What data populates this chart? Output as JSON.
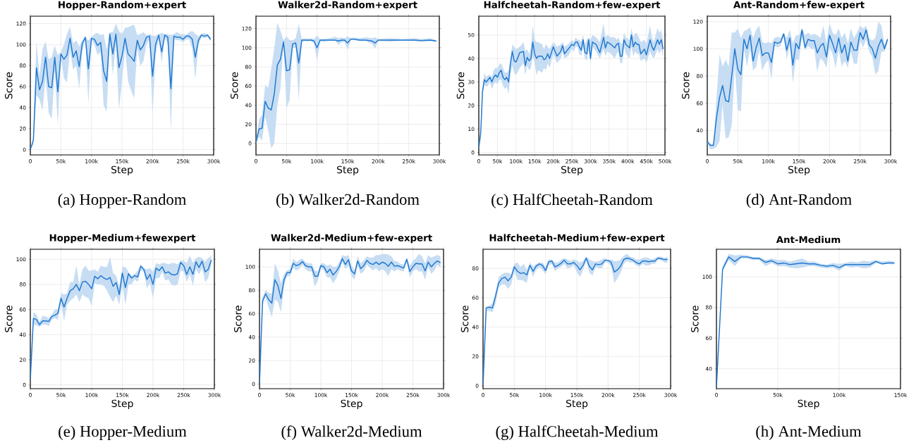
{
  "chart_data": [
    {
      "type": "line",
      "title": "Hopper-Random+expert",
      "xlabel": "Step",
      "ylabel": "Score",
      "annotations": [
        "(a) Hopper-Random"
      ],
      "grid": true,
      "xlim": [
        0,
        300000
      ],
      "ylim": [
        -5,
        127
      ],
      "xticks": [
        0,
        {
          "value": 50000,
          "label": "50k"
        },
        {
          "value": 100000,
          "label": "100k"
        },
        {
          "value": 150000,
          "label": "150k"
        },
        {
          "value": 200000,
          "label": "200k"
        },
        {
          "value": 250000,
          "label": "250k"
        },
        {
          "value": 300000,
          "label": "300k"
        }
      ],
      "yticks": [
        0,
        20,
        40,
        60,
        80,
        100,
        120
      ],
      "x": [
        0,
        5000,
        10000,
        15000,
        20000,
        25000,
        30000,
        35000,
        40000,
        45000,
        50000,
        55000,
        60000,
        65000,
        70000,
        75000,
        80000,
        85000,
        90000,
        95000,
        100000,
        105000,
        110000,
        115000,
        120000,
        125000,
        130000,
        135000,
        140000,
        145000,
        150000,
        155000,
        160000,
        165000,
        170000,
        175000,
        180000,
        185000,
        190000,
        195000,
        200000,
        205000,
        210000,
        215000,
        220000,
        225000,
        230000,
        235000,
        240000,
        245000,
        250000,
        255000,
        260000,
        265000,
        270000,
        275000,
        280000,
        285000,
        290000,
        295000
      ],
      "series": [
        {
          "color": "#1f78d1",
          "values": [
            0,
            9,
            78,
            57,
            65,
            88,
            60,
            59,
            88,
            55,
            91,
            86,
            90,
            106,
            88,
            94,
            79,
            101,
            107,
            77,
            106,
            105,
            99,
            102,
            75,
            65,
            110,
            91,
            110,
            78,
            89,
            106,
            91,
            88,
            84,
            104,
            95,
            99,
            107,
            108,
            70,
            100,
            109,
            93,
            109,
            107,
            58,
            108,
            107,
            107,
            105,
            108,
            108,
            105,
            88,
            104,
            109,
            108,
            109,
            105
          ],
          "upper": [
            0,
            12,
            103,
            70,
            96,
            103,
            86,
            88,
            99,
            90,
            93,
            100,
            110,
            117,
            101,
            104,
            98,
            104,
            107,
            104,
            107,
            110,
            111,
            109,
            110,
            95,
            112,
            112,
            120,
            113,
            110,
            116,
            116.5,
            118,
            119,
            109,
            110,
            112,
            109,
            110,
            108.5,
            108,
            110,
            111,
            110,
            110,
            109,
            110,
            112,
            110,
            110,
            109,
            112,
            113,
            110,
            108,
            110,
            111,
            110,
            107
          ],
          "lower": [
            0,
            5,
            52,
            48,
            37,
            70,
            35,
            29,
            75,
            23,
            88,
            68,
            64,
            95,
            76,
            80,
            58,
            93,
            105,
            43,
            104,
            100,
            90,
            93,
            42,
            36,
            104,
            71,
            100,
            38,
            65,
            96,
            65,
            56,
            49,
            97,
            80,
            84,
            100,
            105,
            33,
            90,
            105,
            82,
            106,
            101,
            17,
            105,
            104,
            104,
            102,
            105,
            105,
            96,
            67,
            99,
            107,
            106,
            107,
            103
          ]
        }
      ]
    },
    {
      "type": "line",
      "title": "Walker2d-Random+expert",
      "xlabel": "Step",
      "ylabel": "Score",
      "annotations": [
        "(b) Walker2d-Random"
      ],
      "grid": true,
      "xlim": [
        0,
        300000
      ],
      "ylim": [
        -12,
        133
      ],
      "xticks": [
        0,
        {
          "value": 50000,
          "label": "50k"
        },
        {
          "value": 100000,
          "label": "100k"
        },
        {
          "value": 150000,
          "label": "150k"
        },
        {
          "value": 200000,
          "label": "200k"
        },
        {
          "value": 250000,
          "label": "250k"
        },
        {
          "value": 300000,
          "label": "300k"
        }
      ],
      "yticks": [
        0,
        20,
        40,
        60,
        80,
        100,
        120
      ],
      "x": [
        0,
        5000,
        10000,
        15000,
        20000,
        25000,
        30000,
        35000,
        40000,
        45000,
        50000,
        55000,
        60000,
        65000,
        70000,
        75000,
        80000,
        85000,
        90000,
        95000,
        100000,
        105000,
        110000,
        120000,
        130000,
        135000,
        140000,
        145000,
        150000,
        155000,
        160000,
        170000,
        180000,
        190000,
        195000,
        200000,
        220000,
        240000,
        260000,
        270000,
        285000,
        295000
      ],
      "series": [
        {
          "color": "#1f78d1",
          "values": [
            1,
            15,
            16,
            44,
            37,
            35,
            52,
            82,
            88,
            106,
            76,
            77,
            104,
            105,
            84,
            108,
            108,
            108,
            108,
            107,
            100,
            108,
            108,
            108,
            108,
            107,
            108,
            108,
            105,
            109,
            109,
            108,
            108,
            107,
            105,
            108,
            108,
            108,
            108,
            107.5,
            108,
            107
          ],
          "upper": [
            2,
            25,
            30,
            61,
            58,
            78,
            100,
            126,
            118,
            108,
            112,
            108,
            108,
            110,
            125,
            109,
            110,
            109,
            110,
            109,
            113,
            109,
            109,
            110,
            111.5,
            110,
            111,
            110,
            112,
            110,
            111,
            110,
            111,
            110,
            111,
            109,
            110,
            109,
            110,
            109,
            110,
            108
          ],
          "lower": [
            0,
            7,
            3,
            28,
            14,
            -5,
            0,
            40,
            57,
            104,
            37,
            45,
            100,
            100,
            45,
            106,
            107,
            106.5,
            107,
            105,
            86,
            107,
            106,
            107.5,
            107,
            103,
            106,
            106,
            98,
            108,
            108,
            107,
            107,
            104,
            99,
            107,
            106.5,
            107.5,
            107,
            106,
            107,
            106
          ]
        }
      ]
    },
    {
      "type": "line",
      "title": "Halfcheetah-Random+few-expert",
      "xlabel": "Step",
      "ylabel": "Score",
      "annotations": [
        "(c) HalfCheetah-Random"
      ],
      "grid": true,
      "xlim": [
        0,
        500000
      ],
      "ylim": [
        -1,
        58
      ],
      "xticks": [
        0,
        {
          "value": 50000,
          "label": "50k"
        },
        {
          "value": 100000,
          "label": "100k"
        },
        {
          "value": 150000,
          "label": "150k"
        },
        {
          "value": 200000,
          "label": "200k"
        },
        {
          "value": 250000,
          "label": "250k"
        },
        {
          "value": 300000,
          "label": "300k"
        },
        {
          "value": 350000,
          "label": "350k"
        },
        {
          "value": 400000,
          "label": "400k"
        },
        {
          "value": 450000,
          "label": "450k"
        },
        {
          "value": 500000,
          "label": "500k"
        }
      ],
      "yticks": [
        0,
        10,
        20,
        30,
        40,
        50
      ],
      "x": [
        0,
        5000,
        10000,
        15000,
        20000,
        25000,
        30000,
        35000,
        40000,
        45000,
        50000,
        55000,
        60000,
        65000,
        70000,
        75000,
        80000,
        85000,
        90000,
        95000,
        100000,
        110000,
        120000,
        125000,
        130000,
        135000,
        140000,
        145000,
        150000,
        155000,
        160000,
        170000,
        175000,
        180000,
        185000,
        190000,
        200000,
        210000,
        220000,
        225000,
        230000,
        240000,
        250000,
        255000,
        260000,
        265000,
        270000,
        275000,
        280000,
        285000,
        290000,
        295000,
        300000,
        305000,
        315000,
        325000,
        335000,
        340000,
        345000,
        355000,
        365000,
        370000,
        375000,
        380000,
        385000,
        390000,
        395000,
        405000,
        410000,
        415000,
        420000,
        425000,
        430000,
        435000,
        445000,
        450000,
        460000,
        465000,
        470000,
        480000,
        485000,
        490000,
        495000
      ],
      "series": [
        {
          "color": "#1f78d1",
          "values": [
            2,
            8,
            26,
            31,
            30,
            31,
            32,
            30,
            32,
            33,
            32,
            34,
            35,
            32,
            31,
            32,
            30,
            38,
            43,
            39,
            38.5,
            42.5,
            43,
            37,
            40.5,
            39,
            40,
            47,
            42,
            40,
            41,
            41,
            39.5,
            40,
            42,
            40,
            45,
            41,
            43,
            45.5,
            42,
            44,
            46,
            45.5,
            47,
            47,
            45,
            43.5,
            48,
            42.5,
            42,
            48,
            40,
            47,
            46,
            42.5,
            49,
            44.5,
            47,
            46,
            44.5,
            46,
            46.5,
            41,
            41,
            48,
            46,
            44.5,
            50,
            45,
            47,
            46,
            46,
            42,
            44,
            41.5,
            48,
            45,
            43.5,
            48,
            46,
            48,
            44
          ],
          "upper": [
            3,
            9,
            28,
            34,
            32,
            33,
            33,
            32,
            35,
            36,
            36,
            37.5,
            38,
            36,
            34,
            34,
            35,
            40,
            46,
            45,
            44,
            45,
            47,
            43,
            44,
            42,
            45,
            54,
            48,
            47,
            47,
            46,
            44,
            46,
            45,
            44,
            47,
            45,
            46,
            47,
            45,
            46,
            48,
            47,
            49,
            48,
            48,
            47,
            50,
            46,
            48,
            49,
            48,
            50,
            49,
            47,
            55,
            49,
            50,
            49,
            49,
            48,
            49,
            47,
            46,
            51,
            49,
            48,
            53,
            49,
            51,
            50.5,
            49,
            47,
            48,
            46,
            54,
            49,
            47,
            53,
            51,
            52,
            48
          ],
          "lower": [
            1.5,
            7,
            24,
            29,
            28,
            28.5,
            30,
            27,
            29,
            30,
            29,
            31,
            31,
            28.5,
            27,
            28,
            25,
            33,
            37,
            34,
            33,
            36,
            38,
            33,
            37,
            35,
            36,
            41,
            38,
            33,
            35,
            34,
            36,
            35,
            38,
            36,
            42,
            38,
            40,
            43,
            40,
            41,
            44,
            43,
            45,
            45,
            42,
            41,
            45,
            40,
            39,
            44,
            38,
            45,
            43,
            40,
            44,
            41,
            43,
            42,
            40,
            42,
            43,
            38,
            38,
            45,
            42,
            40,
            45,
            41,
            43,
            42,
            42,
            39,
            40,
            38,
            43,
            41,
            40,
            44,
            42,
            44,
            40
          ]
        }
      ]
    },
    {
      "type": "line",
      "title": "Ant-Random+few-expert",
      "xlabel": "Step",
      "ylabel": "Score",
      "annotations": [
        "(d) Ant-Random"
      ],
      "grid": true,
      "xlim": [
        0,
        300000
      ],
      "ylim": [
        22,
        124
      ],
      "xticks": [
        0,
        {
          "value": 50000,
          "label": "50k"
        },
        {
          "value": 100000,
          "label": "100k"
        },
        {
          "value": 150000,
          "label": "150k"
        },
        {
          "value": 200000,
          "label": "200k"
        },
        {
          "value": 250000,
          "label": "250k"
        },
        {
          "value": 300000,
          "label": "300k"
        }
      ],
      "yticks": [
        40,
        60,
        80,
        100,
        120
      ],
      "x": [
        0,
        5000,
        10000,
        15000,
        20000,
        25000,
        30000,
        35000,
        40000,
        45000,
        50000,
        55000,
        60000,
        65000,
        70000,
        75000,
        80000,
        85000,
        90000,
        95000,
        100000,
        105000,
        110000,
        115000,
        120000,
        125000,
        130000,
        135000,
        140000,
        145000,
        150000,
        155000,
        160000,
        165000,
        170000,
        175000,
        180000,
        185000,
        190000,
        195000,
        200000,
        205000,
        210000,
        215000,
        220000,
        225000,
        230000,
        235000,
        240000,
        245000,
        250000,
        255000,
        260000,
        265000,
        270000,
        275000,
        280000,
        285000,
        290000,
        295000
      ],
      "series": [
        {
          "color": "#1f78d1",
          "values": [
            32,
            29,
            29,
            49,
            64,
            73,
            62,
            61,
            80,
            100,
            85,
            81,
            107,
            100,
            110,
            91,
            101,
            108,
            95,
            97,
            97,
            90,
            105,
            104,
            105,
            111,
            99,
            108,
            88,
            104,
            100,
            114,
            101,
            107,
            106,
            106,
            97,
            102,
            104,
            94,
            110,
            104,
            97,
            108,
            97,
            103,
            91,
            105,
            99,
            99,
            112,
            107,
            114,
            103,
            100,
            93,
            102,
            107,
            100,
            107
          ],
          "upper": [
            32,
            30,
            30,
            63,
            96,
            87,
            92,
            87,
            112,
            112,
            115,
            108,
            113,
            114,
            116,
            108,
            114,
            117,
            105,
            104,
            105,
            104,
            108,
            109,
            108,
            112,
            108,
            114,
            104,
            110,
            110,
            115,
            110,
            112,
            110,
            111,
            110,
            108,
            117,
            104,
            119,
            112,
            110,
            115,
            108,
            112,
            104,
            115,
            108,
            112,
            117,
            115,
            117,
            108,
            106,
            108,
            120,
            117,
            103,
            109
          ],
          "lower": [
            31,
            26,
            26.5,
            28,
            32,
            59,
            34,
            35,
            44,
            88,
            55,
            54,
            100,
            87,
            100,
            84,
            87,
            99,
            84,
            89,
            92,
            77,
            102,
            101,
            102,
            109,
            92,
            103,
            75,
            92,
            92,
            108,
            99,
            102,
            100,
            100,
            83,
            93,
            91,
            86,
            101,
            96,
            86,
            99,
            87,
            91,
            86,
            98,
            89,
            89,
            106,
            101,
            107,
            98,
            94,
            81,
            84,
            98,
            98,
            104
          ]
        }
      ]
    },
    {
      "type": "line",
      "title": "Hopper-Medium+fewexpert",
      "xlabel": "Step",
      "ylabel": "Score",
      "annotations": [
        "(e) Hopper-Medium"
      ],
      "grid": true,
      "xlim": [
        0,
        300000
      ],
      "ylim": [
        -3,
        108
      ],
      "xticks": [
        0,
        {
          "value": 50000,
          "label": "50k"
        },
        {
          "value": 100000,
          "label": "100k"
        },
        {
          "value": 150000,
          "label": "150k"
        },
        {
          "value": 200000,
          "label": "200k"
        },
        {
          "value": 250000,
          "label": "250k"
        },
        {
          "value": 300000,
          "label": "300k"
        }
      ],
      "yticks": [
        0,
        20,
        40,
        60,
        80,
        100
      ],
      "x": [
        0,
        5000,
        10000,
        15000,
        20000,
        25000,
        30000,
        35000,
        40000,
        45000,
        50000,
        55000,
        60000,
        65000,
        70000,
        75000,
        80000,
        85000,
        90000,
        95000,
        100000,
        105000,
        110000,
        115000,
        120000,
        125000,
        130000,
        135000,
        140000,
        145000,
        150000,
        155000,
        160000,
        165000,
        170000,
        175000,
        180000,
        185000,
        190000,
        195000,
        200000,
        205000,
        210000,
        215000,
        220000,
        225000,
        230000,
        235000,
        240000,
        245000,
        250000,
        255000,
        260000,
        265000,
        270000,
        275000,
        280000,
        285000,
        290000,
        295000
      ],
      "series": [
        {
          "color": "#1f78d1",
          "values": [
            4,
            53,
            52,
            48,
            51,
            51,
            50.5,
            54.5,
            55.5,
            57,
            69,
            62,
            69,
            75,
            76.5,
            80,
            75,
            82,
            82.5,
            80,
            76.5,
            86.5,
            84.5,
            87,
            85,
            84,
            85.5,
            78.5,
            81.5,
            72,
            89,
            77.5,
            88.5,
            85,
            87,
            86,
            94.5,
            92,
            84,
            88,
            80,
            93,
            91,
            94,
            89,
            90,
            88,
            87.5,
            88.5,
            97.5,
            95,
            88,
            94,
            88,
            98,
            93.5,
            98.5,
            90,
            92,
            99.5
          ],
          "upper": [
            5,
            58,
            56,
            50,
            55,
            54.5,
            53,
            56,
            60,
            60,
            73,
            72,
            73,
            82,
            82,
            95,
            80,
            92,
            95,
            91,
            91,
            92,
            90,
            95,
            94,
            94,
            102,
            89,
            87,
            78,
            94,
            94,
            90,
            87,
            88.5,
            91,
            96,
            93,
            92,
            93,
            90,
            97,
            96,
            97,
            97,
            96,
            97,
            97,
            96,
            99,
            99,
            97,
            103,
            97,
            101,
            102,
            101,
            98,
            101,
            103
          ],
          "lower": [
            3,
            48,
            47.5,
            46,
            48,
            48,
            47,
            52,
            53,
            52,
            65,
            51,
            64,
            67,
            69,
            72,
            66,
            72,
            70,
            69,
            63,
            81,
            80,
            80,
            79,
            75,
            70,
            66,
            71,
            64,
            79,
            64,
            80,
            80,
            84,
            82,
            91,
            90,
            77,
            81,
            69,
            85,
            85,
            90,
            83,
            84,
            80,
            79,
            80,
            91,
            90,
            82,
            88,
            79,
            92,
            88,
            93,
            82,
            85,
            96
          ]
        }
      ]
    },
    {
      "type": "line",
      "title": "Walker2d-Medium+few-expert",
      "xlabel": "Step",
      "ylabel": "Score",
      "annotations": [
        "(f) Walker2d-Medium"
      ],
      "grid": true,
      "xlim": [
        0,
        300000
      ],
      "ylim": [
        -4,
        115
      ],
      "xticks": [
        0,
        {
          "value": 50000,
          "label": "50k"
        },
        {
          "value": 100000,
          "label": "100k"
        },
        {
          "value": 150000,
          "label": "150k"
        },
        {
          "value": 200000,
          "label": "200k"
        },
        {
          "value": 250000,
          "label": "250k"
        },
        {
          "value": 300000,
          "label": "300k"
        }
      ],
      "yticks": [
        0,
        20,
        40,
        60,
        80,
        100
      ],
      "x": [
        0,
        5000,
        10000,
        15000,
        20000,
        25000,
        30000,
        35000,
        40000,
        45000,
        50000,
        55000,
        60000,
        65000,
        70000,
        75000,
        80000,
        85000,
        90000,
        95000,
        100000,
        105000,
        110000,
        115000,
        120000,
        125000,
        130000,
        135000,
        140000,
        145000,
        150000,
        155000,
        160000,
        165000,
        170000,
        175000,
        180000,
        185000,
        190000,
        195000,
        200000,
        205000,
        210000,
        215000,
        220000,
        225000,
        230000,
        235000,
        240000,
        245000,
        250000,
        255000,
        260000,
        265000,
        270000,
        275000,
        280000,
        285000,
        290000,
        295000
      ],
      "series": [
        {
          "color": "#1f78d1",
          "values": [
            0,
            71,
            77,
            72,
            69,
            89,
            84,
            73,
            89,
            95,
            95,
            103,
            101,
            102,
            104.5,
            101,
            100,
            100,
            92,
            92,
            101,
            100,
            95,
            98,
            93,
            96,
            100,
            107,
            102,
            106,
            96.5,
            94,
            105,
            98.5,
            101,
            105.5,
            103,
            102,
            104,
            102,
            104,
            103,
            100.5,
            104,
            100.5,
            101,
            100,
            99,
            106.5,
            96,
            100,
            103,
            102.5,
            102.5,
            96.5,
            104,
            100,
            103,
            105,
            103.5
          ],
          "upper": [
            1,
            74,
            80,
            78,
            77,
            103,
            97,
            86,
            94,
            97,
            98,
            107,
            104,
            106,
            107,
            104,
            103,
            103,
            97,
            96,
            103,
            103,
            101,
            102,
            100,
            100,
            104,
            110,
            109,
            110,
            101,
            97,
            109,
            103,
            105.5,
            109,
            108,
            108,
            110,
            110,
            111,
            111,
            110.5,
            109,
            105,
            104.5,
            102.5,
            102,
            108,
            101,
            105,
            107.5,
            111,
            109,
            103,
            110,
            108,
            109,
            110,
            109
          ],
          "lower": [
            -1,
            67,
            74,
            65,
            57,
            72,
            70,
            61,
            84,
            92,
            92,
            99,
            97,
            98,
            102,
            98,
            96,
            96,
            83,
            88,
            99,
            97,
            91,
            91,
            86,
            90,
            96,
            104,
            98,
            101,
            92,
            89,
            101,
            94,
            96,
            102,
            99,
            97,
            99,
            96,
            98,
            96,
            92,
            98,
            96,
            98,
            96.5,
            96,
            104,
            91,
            96,
            98,
            96,
            96,
            89,
            100,
            94,
            97,
            102,
            99
          ]
        }
      ]
    },
    {
      "type": "line",
      "title": "Halfcheetah-Medium+few-expert",
      "xlabel": "Step",
      "ylabel": "Score",
      "annotations": [
        "(g) HalfCheetah-Medium"
      ],
      "grid": true,
      "xlim": [
        0,
        300000
      ],
      "ylim": [
        -2,
        93
      ],
      "xticks": [
        0,
        {
          "value": 50000,
          "label": "50k"
        },
        {
          "value": 100000,
          "label": "100k"
        },
        {
          "value": 150000,
          "label": "150k"
        },
        {
          "value": 200000,
          "label": "200k"
        },
        {
          "value": 250000,
          "label": "250k"
        },
        {
          "value": 300000,
          "label": "300k"
        }
      ],
      "yticks": [
        0,
        20,
        40,
        60,
        80
      ],
      "x": [
        0,
        5000,
        10000,
        15000,
        20000,
        25000,
        30000,
        35000,
        40000,
        45000,
        50000,
        55000,
        60000,
        65000,
        70000,
        75000,
        80000,
        85000,
        90000,
        95000,
        100000,
        105000,
        110000,
        115000,
        120000,
        125000,
        130000,
        135000,
        140000,
        145000,
        150000,
        155000,
        160000,
        165000,
        170000,
        175000,
        180000,
        185000,
        190000,
        195000,
        200000,
        205000,
        210000,
        215000,
        220000,
        225000,
        230000,
        235000,
        240000,
        245000,
        250000,
        255000,
        260000,
        265000,
        270000,
        275000,
        280000,
        285000,
        290000,
        295000
      ],
      "series": [
        {
          "color": "#1f78d1",
          "values": [
            0,
            53,
            53.5,
            53,
            61,
            70,
            73,
            74,
            71.5,
            74,
            81,
            78,
            76.5,
            77,
            75.5,
            82,
            78,
            81.5,
            83,
            82,
            78.5,
            84.5,
            85,
            81,
            82,
            83.5,
            85.5,
            83,
            83,
            84,
            82,
            79,
            82,
            87,
            81.5,
            79,
            83,
            82.5,
            83,
            85.5,
            85.5,
            84,
            77.5,
            79,
            81.5,
            86,
            87,
            86.5,
            85.5,
            84,
            83,
            85,
            85,
            84.5,
            85,
            85,
            87,
            86.5,
            86,
            86
          ],
          "upper": [
            1,
            54,
            54.5,
            56,
            64,
            74,
            76,
            77,
            77,
            76,
            83,
            84,
            81,
            83,
            79,
            84,
            81,
            83,
            84,
            84,
            81,
            86,
            86,
            84,
            84,
            86,
            87,
            86,
            85,
            86,
            85.5,
            84,
            85,
            88,
            86,
            85,
            84.5,
            85,
            86,
            87,
            85.5,
            86,
            85,
            85,
            86,
            88.5,
            90,
            88,
            87.5,
            86,
            86,
            87,
            87.5,
            87,
            86,
            87,
            88,
            88,
            87,
            88
          ],
          "lower": [
            -1,
            51,
            51,
            50,
            56,
            67,
            69,
            69,
            66,
            69,
            78,
            72,
            72,
            71.5,
            70,
            80,
            74,
            79,
            81,
            79,
            76,
            82,
            83,
            78,
            80,
            81,
            83,
            80,
            80.5,
            82,
            77.5,
            74,
            79,
            85,
            77,
            75,
            81,
            80,
            80,
            84,
            84,
            81,
            70,
            73,
            77,
            83,
            85,
            84,
            84,
            82,
            81,
            83,
            82,
            82,
            83,
            83,
            86,
            85.5,
            84,
            84
          ]
        }
      ]
    },
    {
      "type": "line",
      "title": "Ant-Medium",
      "xlabel": "Step",
      "ylabel": "Score",
      "annotations": [
        "(h) Ant-Medium"
      ],
      "grid": true,
      "xlim": [
        0,
        150000
      ],
      "ylim": [
        27,
        118
      ],
      "xticks": [
        0,
        {
          "value": 50000,
          "label": "50k"
        },
        {
          "value": 100000,
          "label": "100k"
        },
        {
          "value": 150000,
          "label": "150k"
        }
      ],
      "yticks": [
        40,
        60,
        80,
        100
      ],
      "x": [
        0,
        5000,
        10000,
        15000,
        20000,
        25000,
        30000,
        35000,
        40000,
        45000,
        50000,
        55000,
        60000,
        65000,
        70000,
        75000,
        80000,
        85000,
        90000,
        95000,
        100000,
        105000,
        110000,
        115000,
        120000,
        125000,
        130000,
        135000,
        140000,
        145000
      ],
      "series": [
        {
          "color": "#1f78d1",
          "values": [
            28,
            105,
            113,
            110,
            113,
            113,
            112,
            112,
            109.5,
            110.5,
            108.5,
            109,
            108,
            108.5,
            109,
            108.5,
            108.5,
            107.5,
            107,
            107.5,
            106,
            108,
            108,
            108,
            108,
            108,
            110,
            108.5,
            109,
            109
          ],
          "upper": [
            29,
            107,
            115,
            114,
            114.5,
            114,
            113,
            113,
            111,
            112,
            111,
            111,
            110,
            111,
            112,
            110,
            110,
            108.5,
            108,
            109,
            108.5,
            109,
            110,
            109.5,
            110.5,
            110,
            111,
            110,
            110.5,
            110
          ],
          "lower": [
            27,
            104,
            111,
            107,
            112,
            112,
            111,
            111,
            107,
            109,
            107,
            107,
            106,
            105.5,
            106,
            107,
            107,
            106,
            105.5,
            106,
            104,
            107,
            106,
            106.5,
            105.5,
            106,
            109,
            108,
            108.5,
            108
          ]
        }
      ]
    }
  ]
}
